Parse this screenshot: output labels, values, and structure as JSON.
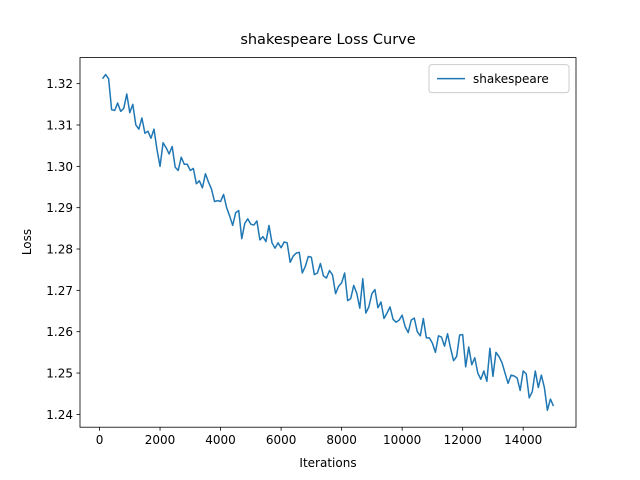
{
  "chart_data": {
    "type": "line",
    "title": "shakespeare Loss Curve",
    "xlabel": "Iterations",
    "ylabel": "Loss",
    "x": [
      100,
      200,
      300,
      400,
      500,
      600,
      700,
      800,
      900,
      1000,
      1100,
      1200,
      1300,
      1400,
      1500,
      1600,
      1700,
      1800,
      1900,
      2000,
      2100,
      2200,
      2300,
      2400,
      2500,
      2600,
      2700,
      2800,
      2900,
      3000,
      3100,
      3200,
      3300,
      3400,
      3500,
      3600,
      3700,
      3800,
      3900,
      4000,
      4100,
      4200,
      4300,
      4400,
      4500,
      4600,
      4700,
      4800,
      4900,
      5000,
      5100,
      5200,
      5300,
      5400,
      5500,
      5600,
      5700,
      5800,
      5900,
      6000,
      6100,
      6200,
      6300,
      6400,
      6500,
      6600,
      6700,
      6800,
      6900,
      7000,
      7100,
      7200,
      7300,
      7400,
      7500,
      7600,
      7700,
      7800,
      7900,
      8000,
      8100,
      8200,
      8300,
      8400,
      8500,
      8600,
      8700,
      8800,
      8900,
      9000,
      9100,
      9200,
      9300,
      9400,
      9500,
      9600,
      9700,
      9800,
      9900,
      10000,
      10100,
      10200,
      10300,
      10400,
      10500,
      10600,
      10700,
      10800,
      10900,
      11000,
      11100,
      11200,
      11300,
      11400,
      11500,
      11600,
      11700,
      11800,
      11900,
      12000,
      12100,
      12200,
      12300,
      12400,
      12500,
      12600,
      12700,
      12800,
      12900,
      13000,
      13100,
      13200,
      13300,
      13400,
      13500,
      13600,
      13700,
      13800,
      13900,
      14000,
      14100,
      14200,
      14300,
      14400,
      14500,
      14600,
      14700,
      14800,
      14900,
      15000
    ],
    "series": [
      {
        "name": "shakespeare",
        "color": "#1f77b4",
        "values": [
          1.3212,
          1.3222,
          1.3212,
          1.3137,
          1.3135,
          1.3153,
          1.3133,
          1.314,
          1.3175,
          1.313,
          1.315,
          1.31,
          1.309,
          1.3117,
          1.308,
          1.3085,
          1.3068,
          1.309,
          1.304,
          1.3,
          1.3057,
          1.3045,
          1.303,
          1.3048,
          1.2998,
          1.299,
          1.3022,
          1.3005,
          1.3005,
          1.299,
          1.2995,
          1.2958,
          1.2965,
          1.2948,
          1.2982,
          1.2962,
          1.2945,
          1.2915,
          1.2917,
          1.2915,
          1.2932,
          1.29,
          1.288,
          1.2857,
          1.2888,
          1.2893,
          1.2825,
          1.2862,
          1.2873,
          1.286,
          1.2858,
          1.2868,
          1.2822,
          1.283,
          1.2818,
          1.2857,
          1.2815,
          1.2802,
          1.2815,
          1.2803,
          1.2817,
          1.2815,
          1.2768,
          1.2783,
          1.279,
          1.2792,
          1.2742,
          1.2758,
          1.2782,
          1.278,
          1.2738,
          1.2742,
          1.2765,
          1.2735,
          1.273,
          1.2748,
          1.2737,
          1.2692,
          1.271,
          1.2718,
          1.2742,
          1.2675,
          1.268,
          1.2712,
          1.2693,
          1.2657,
          1.2728,
          1.2645,
          1.266,
          1.2692,
          1.2702,
          1.2658,
          1.2672,
          1.2632,
          1.2645,
          1.266,
          1.263,
          1.2623,
          1.2628,
          1.264,
          1.2612,
          1.2598,
          1.2628,
          1.2633,
          1.26,
          1.259,
          1.2632,
          1.2585,
          1.2585,
          1.2572,
          1.255,
          1.259,
          1.2587,
          1.2565,
          1.2595,
          1.256,
          1.253,
          1.254,
          1.2592,
          1.2593,
          1.2515,
          1.2563,
          1.252,
          1.2537,
          1.25,
          1.2485,
          1.2505,
          1.248,
          1.256,
          1.2492,
          1.255,
          1.254,
          1.2525,
          1.25,
          1.2475,
          1.2495,
          1.2493,
          1.2488,
          1.2458,
          1.2505,
          1.2498,
          1.244,
          1.2455,
          1.2505,
          1.2465,
          1.2495,
          1.2465,
          1.241,
          1.2437,
          1.242
        ]
      }
    ],
    "xlim": [
      -645,
      15745
    ],
    "ylim": [
      1.2369,
      1.3263
    ],
    "xticks": [
      0,
      2000,
      4000,
      6000,
      8000,
      10000,
      12000,
      14000
    ],
    "yticks": [
      1.24,
      1.25,
      1.26,
      1.27,
      1.28,
      1.29,
      {
        "value": 1.3,
        "label": "1.30"
      },
      1.31,
      1.32
    ],
    "legend": "upper right"
  }
}
